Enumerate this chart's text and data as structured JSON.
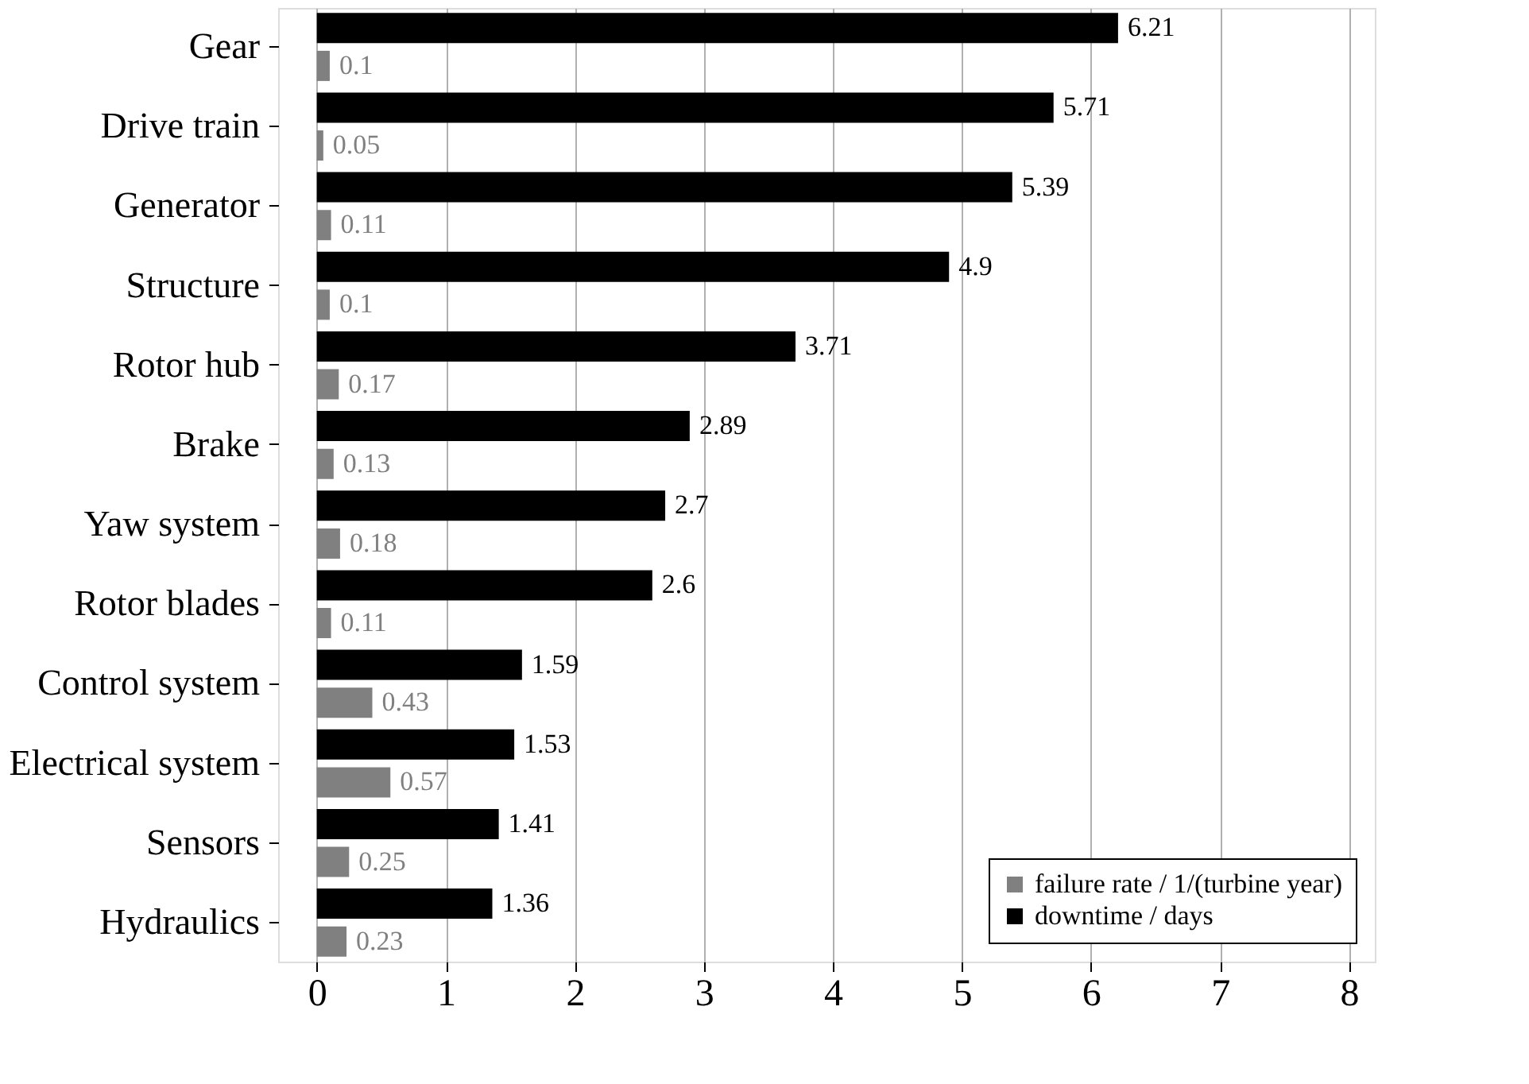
{
  "chart_data": {
    "type": "bar",
    "orientation": "horizontal",
    "categories": [
      "Gear",
      "Drive train",
      "Generator",
      "Structure",
      "Rotor hub",
      "Brake",
      "Yaw system",
      "Rotor blades",
      "Control system",
      "Electrical system",
      "Sensors",
      "Hydraulics"
    ],
    "series": [
      {
        "name": "failure rate / 1/(turbine year)",
        "color": "#808080",
        "values": [
          0.1,
          0.05,
          0.11,
          0.1,
          0.17,
          0.13,
          0.18,
          0.11,
          0.43,
          0.57,
          0.25,
          0.23
        ]
      },
      {
        "name": "downtime / days",
        "color": "#000000",
        "values": [
          6.21,
          5.71,
          5.39,
          4.9,
          3.71,
          2.89,
          2.7,
          2.6,
          1.59,
          1.53,
          1.41,
          1.36
        ]
      }
    ],
    "xlim": [
      -0.3,
      8.2
    ],
    "xticks": [
      0,
      1,
      2,
      3,
      4,
      5,
      6,
      7,
      8
    ],
    "grid": "x",
    "legend": "bottom right",
    "data_labels": true
  }
}
